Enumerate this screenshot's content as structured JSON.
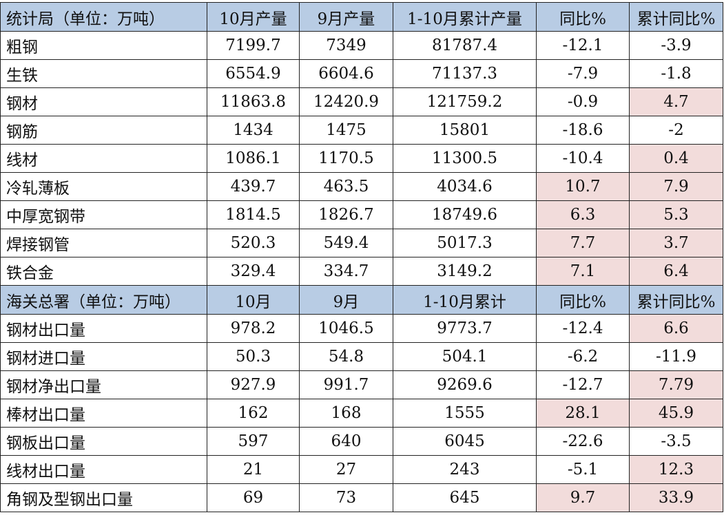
{
  "colors": {
    "header_bg": "#b8cce4",
    "highlight_bg": "#f2dcdb"
  },
  "sections": [
    {
      "header": [
        "统计局（单位：万吨）",
        "10月产量",
        "9月产量",
        "1-10月累计产量",
        "同比%",
        "累计同比%"
      ],
      "rows": [
        {
          "cells": [
            "粗钢",
            "7199.7",
            "7349",
            "81787.4",
            "-12.1",
            "-3.9"
          ],
          "highlight": [
            false,
            false
          ]
        },
        {
          "cells": [
            "生铁",
            "6554.9",
            "6604.6",
            "71137.3",
            "-7.9",
            "-1.8"
          ],
          "highlight": [
            false,
            false
          ]
        },
        {
          "cells": [
            "钢材",
            "11863.8",
            "12420.9",
            "121759.2",
            "-0.9",
            "4.7"
          ],
          "highlight": [
            false,
            true
          ]
        },
        {
          "cells": [
            "钢筋",
            "1434",
            "1475",
            "15801",
            "-18.6",
            "-2"
          ],
          "highlight": [
            false,
            false
          ]
        },
        {
          "cells": [
            "线材",
            "1086.1",
            "1170.5",
            "11300.5",
            "-10.4",
            "0.4"
          ],
          "highlight": [
            false,
            true
          ]
        },
        {
          "cells": [
            "冷轧薄板",
            "439.7",
            "463.5",
            "4034.6",
            "10.7",
            "7.9"
          ],
          "highlight": [
            true,
            true
          ]
        },
        {
          "cells": [
            "中厚宽钢带",
            "1814.5",
            "1826.7",
            "18749.6",
            "6.3",
            "5.3"
          ],
          "highlight": [
            true,
            true
          ]
        },
        {
          "cells": [
            "焊接钢管",
            "520.3",
            "549.4",
            "5017.3",
            "7.7",
            "3.7"
          ],
          "highlight": [
            true,
            true
          ]
        },
        {
          "cells": [
            "铁合金",
            "329.4",
            "334.7",
            "3149.2",
            "7.1",
            "6.4"
          ],
          "highlight": [
            true,
            true
          ]
        }
      ]
    },
    {
      "header": [
        "海关总署（单位：万吨）",
        "10月",
        "9月",
        "1-10月累计",
        "同比%",
        "累计同比%"
      ],
      "rows": [
        {
          "cells": [
            "钢材出口量",
            "978.2",
            "1046.5",
            "9773.7",
            "-12.4",
            "6.6"
          ],
          "highlight": [
            false,
            true
          ]
        },
        {
          "cells": [
            "钢材进口量",
            "50.3",
            "54.8",
            "504.1",
            "-6.2",
            "-11.9"
          ],
          "highlight": [
            false,
            false
          ]
        },
        {
          "cells": [
            "钢材净出口量",
            "927.9",
            "991.7",
            "9269.6",
            "-12.7",
            "7.79"
          ],
          "highlight": [
            false,
            true
          ]
        },
        {
          "cells": [
            "棒材出口量",
            "162",
            "168",
            "1555",
            "28.1",
            "45.9"
          ],
          "highlight": [
            true,
            true
          ]
        },
        {
          "cells": [
            "钢板出口量",
            "597",
            "640",
            "6045",
            "-22.6",
            "-3.5"
          ],
          "highlight": [
            false,
            false
          ]
        },
        {
          "cells": [
            "线材出口量",
            "21",
            "27",
            "243",
            "-5.1",
            "12.3"
          ],
          "highlight": [
            false,
            true
          ]
        },
        {
          "cells": [
            "角钢及型钢出口量",
            "69",
            "73",
            "645",
            "9.7",
            "33.9"
          ],
          "highlight": [
            true,
            true
          ]
        }
      ]
    }
  ]
}
